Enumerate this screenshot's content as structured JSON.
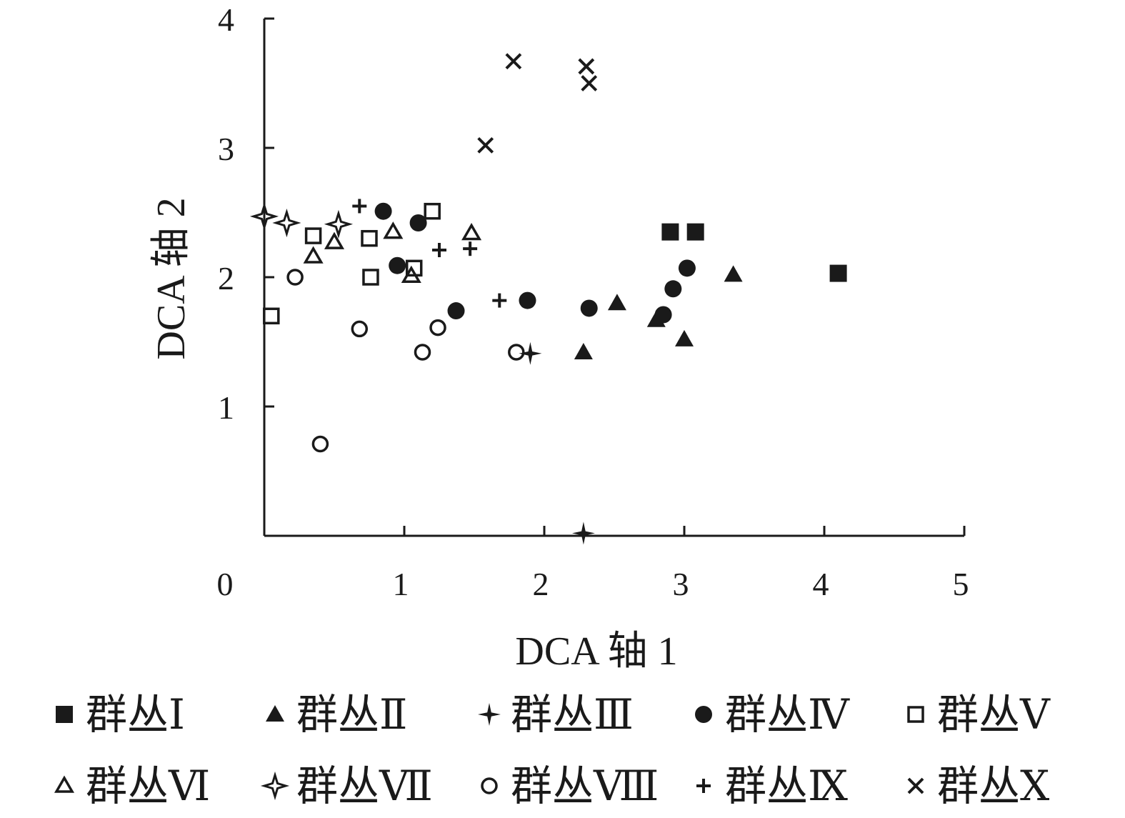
{
  "chart_data": {
    "type": "scatter",
    "xlabel": "DCA 轴 1",
    "ylabel": "DCA 轴 2",
    "xlim": [
      0,
      5
    ],
    "ylim": [
      0,
      4
    ],
    "x_ticks": [
      "0",
      "1",
      "2",
      "3",
      "4",
      "5"
    ],
    "y_ticks": [
      "1",
      "2",
      "3",
      "4"
    ],
    "grid": false,
    "legend_position": "bottom",
    "color": "#1a1a1a",
    "series": [
      {
        "name": "群丛Ⅰ",
        "marker": "square-filled",
        "points": [
          [
            2.9,
            2.35
          ],
          [
            3.08,
            2.35
          ],
          [
            4.1,
            2.03
          ]
        ]
      },
      {
        "name": "群丛Ⅱ",
        "marker": "triangle-filled",
        "points": [
          [
            2.28,
            1.42
          ],
          [
            2.52,
            1.8
          ],
          [
            2.8,
            1.67
          ],
          [
            3.0,
            1.52
          ],
          [
            3.35,
            2.02
          ]
        ]
      },
      {
        "name": "群丛Ⅲ",
        "marker": "star4-filled",
        "points": [
          [
            1.9,
            1.41
          ],
          [
            2.28,
            0.02
          ]
        ]
      },
      {
        "name": "群丛Ⅳ",
        "marker": "circle-filled",
        "points": [
          [
            0.85,
            2.51
          ],
          [
            0.95,
            2.09
          ],
          [
            1.1,
            2.42
          ],
          [
            1.37,
            1.74
          ],
          [
            1.88,
            1.82
          ],
          [
            2.32,
            1.76
          ],
          [
            2.85,
            1.71
          ],
          [
            2.92,
            1.91
          ],
          [
            3.02,
            2.07
          ]
        ]
      },
      {
        "name": "群丛Ⅴ",
        "marker": "square-open",
        "points": [
          [
            0.05,
            1.7
          ],
          [
            0.35,
            2.32
          ],
          [
            0.75,
            2.3
          ],
          [
            0.76,
            2.0
          ],
          [
            1.07,
            2.07
          ],
          [
            1.2,
            2.51
          ]
        ]
      },
      {
        "name": "群丛Ⅵ",
        "marker": "triangle-open",
        "points": [
          [
            0.35,
            2.16
          ],
          [
            0.5,
            2.27
          ],
          [
            0.92,
            2.35
          ],
          [
            1.05,
            2.01
          ],
          [
            1.48,
            2.34
          ]
        ]
      },
      {
        "name": "群丛Ⅶ",
        "marker": "star4-open",
        "points": [
          [
            0.0,
            2.47
          ],
          [
            0.16,
            2.42
          ],
          [
            0.53,
            2.41
          ]
        ]
      },
      {
        "name": "群丛Ⅷ",
        "marker": "circle-open",
        "points": [
          [
            0.22,
            2.0
          ],
          [
            0.4,
            0.71
          ],
          [
            0.68,
            1.6
          ],
          [
            1.13,
            1.42
          ],
          [
            1.24,
            1.61
          ],
          [
            1.8,
            1.42
          ]
        ]
      },
      {
        "name": "群丛Ⅸ",
        "marker": "plus",
        "points": [
          [
            0.68,
            2.55
          ],
          [
            1.25,
            2.21
          ],
          [
            1.47,
            2.22
          ],
          [
            1.68,
            1.82
          ]
        ]
      },
      {
        "name": "群丛Ⅹ",
        "marker": "cross",
        "points": [
          [
            1.58,
            3.02
          ],
          [
            1.78,
            3.67
          ],
          [
            2.3,
            3.63
          ],
          [
            2.32,
            3.5
          ]
        ]
      }
    ]
  }
}
